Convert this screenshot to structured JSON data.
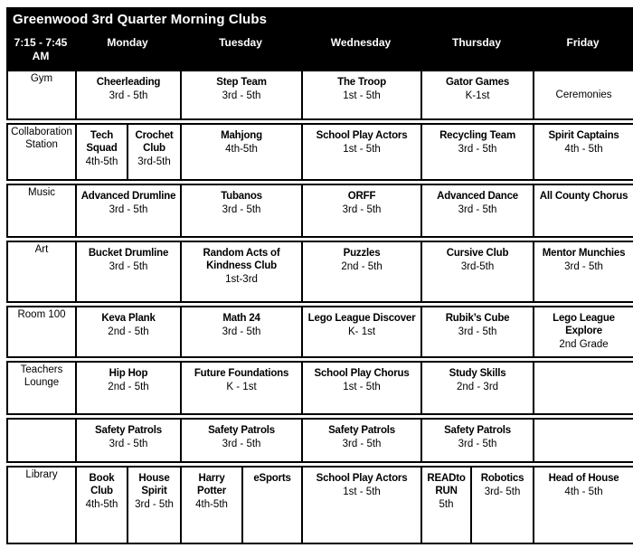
{
  "title": "Greenwood 3rd Quarter Morning Clubs",
  "colors": {
    "header_bg": "#000000",
    "header_text": "#ffffff",
    "border": "#000000",
    "cell_bg": "#ffffff",
    "cell_text": "#000000"
  },
  "header": {
    "time_label": "7:15 - 7:45 AM",
    "days": [
      "Monday",
      "Tuesday",
      "Wednesday",
      "Thursday",
      "Friday"
    ]
  },
  "rows": [
    {
      "room": "Gym",
      "cells": [
        {
          "club": "Cheerleading",
          "grade": "3rd - 5th",
          "span": 2
        },
        {
          "club": "Step Team",
          "grade": "3rd - 5th",
          "span": 2
        },
        {
          "club": "The Troop",
          "grade": "1st - 5th",
          "span": 1
        },
        {
          "club": "Gator Games",
          "grade": "K-1st",
          "span": 2
        },
        {
          "club": "Ceremonies",
          "grade": "",
          "span": 1,
          "bold": false,
          "middle": true
        }
      ]
    },
    {
      "room": "Collaboration Station",
      "cells": [
        {
          "club": "Tech Squad",
          "grade": "4th-5th",
          "span": 1
        },
        {
          "club": "Crochet Club",
          "grade": "3rd-5th",
          "span": 1
        },
        {
          "club": "Mahjong",
          "grade": "4th-5th",
          "span": 2
        },
        {
          "club": "School Play Actors",
          "grade": "1st - 5th",
          "span": 1
        },
        {
          "club": "Recycling Team",
          "grade": "3rd - 5th",
          "span": 2
        },
        {
          "club": "Spirit Captains",
          "grade": "4th - 5th",
          "span": 1
        }
      ]
    },
    {
      "room": "Music",
      "cells": [
        {
          "club": "Advanced Drumline",
          "grade": "3rd - 5th",
          "span": 2
        },
        {
          "club": "Tubanos",
          "grade": "3rd - 5th",
          "span": 2
        },
        {
          "club": "ORFF",
          "grade": "3rd - 5th",
          "span": 1
        },
        {
          "club": "Advanced Dance",
          "grade": "3rd - 5th",
          "span": 2
        },
        {
          "club": "All County Chorus",
          "grade": "",
          "span": 1
        }
      ]
    },
    {
      "room": "Art",
      "cells": [
        {
          "club": "Bucket Drumline",
          "grade": "3rd - 5th",
          "span": 2
        },
        {
          "club": "Random Acts of Kindness Club",
          "grade": "1st-3rd",
          "span": 2
        },
        {
          "club": "Puzzles",
          "grade": "2nd - 5th",
          "span": 1
        },
        {
          "club": "Cursive Club",
          "grade": "3rd-5th",
          "span": 2
        },
        {
          "club": "Mentor Munchies",
          "grade": "3rd - 5th",
          "span": 1
        }
      ]
    },
    {
      "room": "Room 100",
      "cells": [
        {
          "club": "Keva Plank",
          "grade": "2nd - 5th",
          "span": 2
        },
        {
          "club": "Math 24",
          "grade": "3rd - 5th",
          "span": 2
        },
        {
          "club": "Lego League Discover",
          "grade": "K- 1st",
          "span": 1
        },
        {
          "club": "Rubik’s Cube",
          "grade": "3rd - 5th",
          "span": 2
        },
        {
          "club": "Lego League Explore",
          "grade": "2nd Grade",
          "span": 1
        }
      ]
    },
    {
      "room": "Teachers Lounge",
      "cells": [
        {
          "club": "Hip Hop",
          "grade": "2nd - 5th",
          "span": 2
        },
        {
          "club": "Future Foundations",
          "grade": "K - 1st",
          "span": 2
        },
        {
          "club": "School Play Chorus",
          "grade": "1st - 5th",
          "span": 1
        },
        {
          "club": "Study Skills",
          "grade": "2nd - 3rd",
          "span": 2
        },
        {
          "club": "",
          "grade": "",
          "span": 1
        }
      ]
    },
    {
      "room": "",
      "cells": [
        {
          "club": "Safety Patrols",
          "grade": "3rd - 5th",
          "span": 2
        },
        {
          "club": "Safety Patrols",
          "grade": "3rd - 5th",
          "span": 2
        },
        {
          "club": "Safety Patrols",
          "grade": "3rd - 5th",
          "span": 1
        },
        {
          "club": "Safety Patrols",
          "grade": "3rd - 5th",
          "span": 2
        },
        {
          "club": "",
          "grade": "",
          "span": 1
        }
      ]
    },
    {
      "room": "Library",
      "cells": [
        {
          "club": "Book Club",
          "grade": "4th-5th",
          "span": 1
        },
        {
          "club": "House Spirit",
          "grade": "3rd - 5th",
          "span": 1
        },
        {
          "club": "Harry Potter",
          "grade": "4th-5th",
          "span": 1
        },
        {
          "club": "eSports",
          "grade": "",
          "span": 1
        },
        {
          "club": "School Play Actors",
          "grade": "1st - 5th",
          "span": 1
        },
        {
          "club": "READto RUN",
          "grade": "5th",
          "span": 1
        },
        {
          "club": "Robotics",
          "grade": "3rd- 5th",
          "span": 1
        },
        {
          "club": "Head of House",
          "grade": "4th - 5th",
          "span": 1
        }
      ]
    }
  ]
}
